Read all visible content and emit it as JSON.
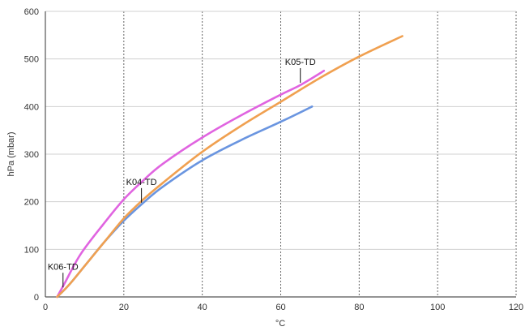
{
  "chart_data": {
    "type": "line",
    "title": "",
    "xlabel": "°C",
    "ylabel": "hPa (mbar)",
    "xlim": [
      0,
      120
    ],
    "ylim": [
      0,
      600
    ],
    "x_ticks": [
      "0",
      "20",
      "40",
      "60",
      "80",
      "100",
      "120"
    ],
    "y_ticks": [
      "0",
      "100",
      "200",
      "300",
      "400",
      "500",
      "600"
    ],
    "grid": true,
    "series": [
      {
        "color": "#6a95e0",
        "x": [
          3,
          6,
          10,
          15,
          20,
          25,
          30,
          40,
          50,
          60,
          68
        ],
        "y": [
          0,
          25,
          65,
          115,
          160,
          198,
          232,
          287,
          330,
          368,
          400
        ]
      },
      {
        "color": "#e064e0",
        "x": [
          3,
          5,
          9,
          15,
          20,
          25,
          30,
          40,
          50,
          60,
          65,
          71
        ],
        "y": [
          0,
          30,
          90,
          155,
          205,
          245,
          280,
          335,
          382,
          425,
          445,
          475
        ]
      },
      {
        "color": "#f0a050",
        "x": [
          3,
          6,
          10,
          15,
          20,
          25,
          30,
          40,
          50,
          60,
          70,
          80,
          91
        ],
        "y": [
          0,
          25,
          65,
          115,
          165,
          205,
          240,
          305,
          360,
          410,
          460,
          505,
          548
        ]
      }
    ],
    "annotations": [
      {
        "text": "K06-TD",
        "x": 4.5,
        "y": 20
      },
      {
        "text": "K04-TD",
        "x": 24.5,
        "y": 198
      },
      {
        "text": "K05-TD",
        "x": 65,
        "y": 450
      }
    ]
  }
}
